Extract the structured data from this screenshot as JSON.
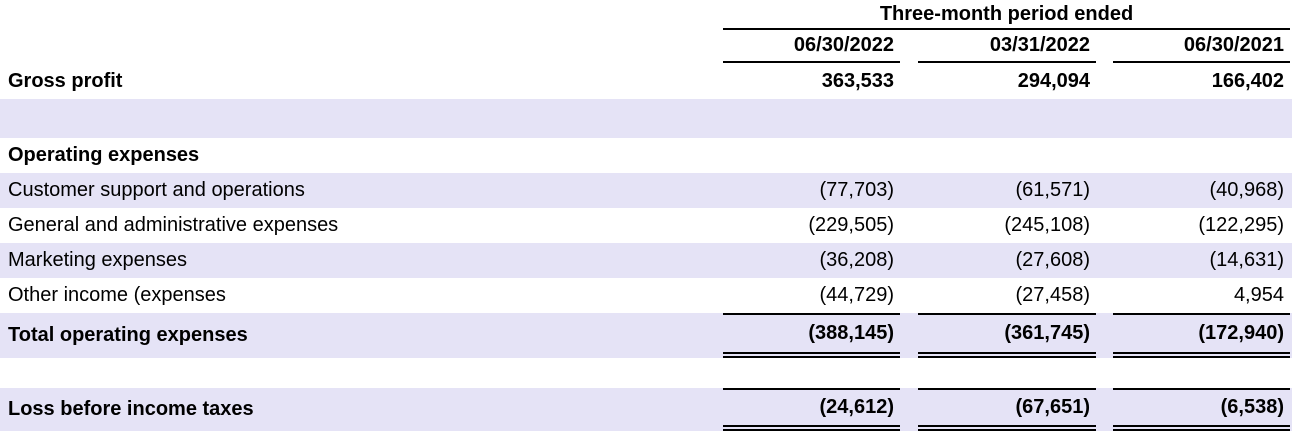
{
  "table": {
    "period_header": "Three-month period ended",
    "columns": [
      "06/30/2022",
      "03/31/2022",
      "06/30/2021"
    ],
    "rows": [
      {
        "label": "Gross profit",
        "values": [
          "363,533",
          "294,094",
          "166,402"
        ]
      },
      {
        "label": "Operating expenses",
        "values": [
          "",
          "",
          ""
        ]
      },
      {
        "label": "Customer support and operations",
        "values": [
          "(77,703)",
          "(61,571)",
          "(40,968)"
        ]
      },
      {
        "label": "General and administrative expenses",
        "values": [
          "(229,505)",
          "(245,108)",
          "(122,295)"
        ]
      },
      {
        "label": "Marketing expenses",
        "values": [
          "(36,208)",
          "(27,608)",
          "(14,631)"
        ]
      },
      {
        "label": "Other income (expenses",
        "values": [
          "(44,729)",
          "(27,458)",
          "4,954"
        ]
      },
      {
        "label": "Total operating expenses",
        "values": [
          "(388,145)",
          "(361,745)",
          "(172,940)"
        ]
      },
      {
        "label": "Loss before income taxes",
        "values": [
          "(24,612)",
          "(67,651)",
          "(6,538)"
        ]
      }
    ],
    "colors": {
      "row_highlight": "#E5E3F6",
      "rule": "#000000",
      "text": "#000000"
    }
  }
}
